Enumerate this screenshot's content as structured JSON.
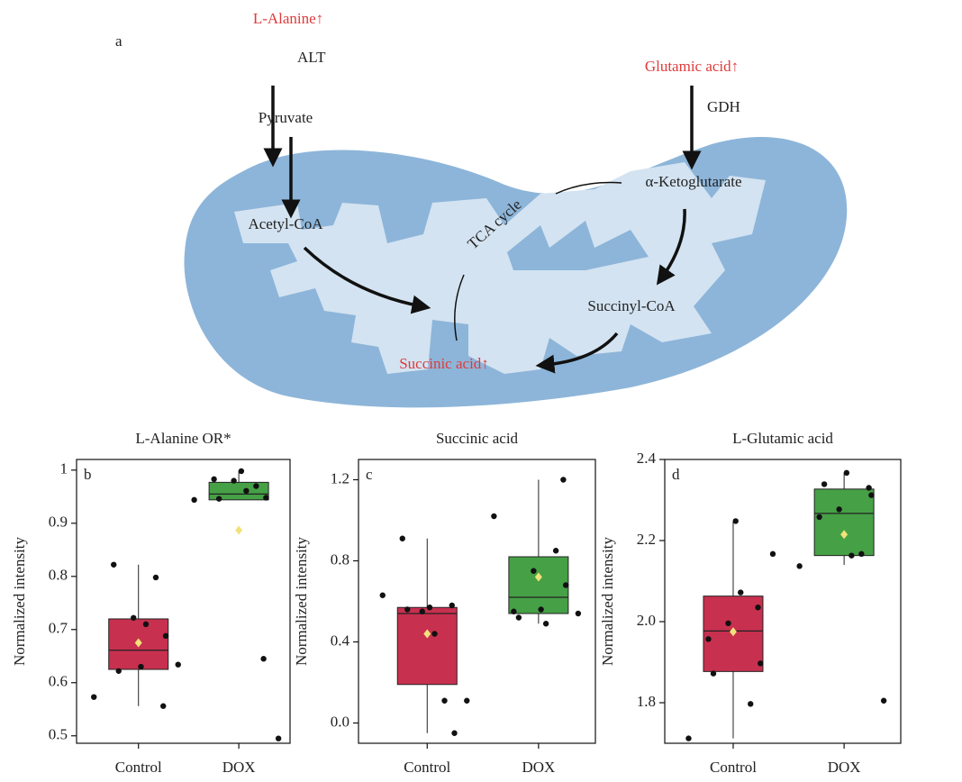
{
  "diagram": {
    "panel_label": "a",
    "alanine": "L-Alanine↑",
    "alt": "ALT",
    "pyruvate": "Pyruvate",
    "acetyl_coa": "Acetyl-CoA",
    "tca_cycle": "TCA cycle",
    "succinic_acid": "Succinic acid↑",
    "glutamic_acid": "Glutamic acid↑",
    "gdh": "GDH",
    "ketoglutarate": "α-Ketoglutarate",
    "succinyl_coa": "Succinyl-CoA"
  },
  "chart_data": [
    {
      "type": "box",
      "panel_label": "b",
      "title": "L-Alanine OR*",
      "ylabel": "Normalized intensity",
      "categories": [
        "Control",
        "DOX"
      ],
      "ylim": [
        0.486,
        1.02
      ],
      "yticks": [
        0.5,
        0.6,
        0.7,
        0.8,
        0.9,
        1.0
      ],
      "boxes": [
        {
          "color": "#c8304f",
          "whisker": [
            0.556,
            0.822
          ],
          "q1": 0.625,
          "median": 0.661,
          "q3": 0.72,
          "mean": 0.675,
          "points": [
            0.573,
            0.822,
            0.622,
            0.722,
            0.63,
            0.71,
            0.798,
            0.688,
            0.556,
            0.634
          ]
        },
        {
          "color": "#46a046",
          "whisker": [
            0.944,
            0.998
          ],
          "q1": 0.944,
          "median": 0.955,
          "q3": 0.977,
          "mean": 0.887,
          "points": [
            0.944,
            0.983,
            0.946,
            0.98,
            0.998,
            0.961,
            0.97,
            0.948,
            0.645,
            0.495
          ]
        }
      ]
    },
    {
      "type": "box",
      "panel_label": "c",
      "title": "Succinic acid",
      "ylabel": "Normalized intensity",
      "categories": [
        "Control",
        "DOX"
      ],
      "ylim": [
        -0.1,
        1.3
      ],
      "yticks": [
        {
          "value": 0,
          "label": "0.0"
        },
        0.4,
        0.8,
        1.2
      ],
      "boxes": [
        {
          "color": "#c8304f",
          "whisker": [
            -0.05,
            0.91
          ],
          "q1": 0.19,
          "median": 0.54,
          "q3": 0.57,
          "mean": 0.44,
          "points": [
            0.63,
            0.91,
            0.56,
            0.55,
            0.57,
            0.44,
            0.11,
            -0.05,
            0.58,
            0.11
          ]
        },
        {
          "color": "#46a046",
          "whisker": [
            0.49,
            1.2
          ],
          "q1": 0.54,
          "median": 0.62,
          "q3": 0.82,
          "mean": 0.72,
          "points": [
            1.02,
            0.55,
            0.52,
            0.75,
            0.56,
            0.49,
            0.85,
            0.68,
            1.2,
            0.54
          ]
        }
      ]
    },
    {
      "type": "box",
      "panel_label": "d",
      "title": "L-Glutamic acid",
      "ylabel": "Normalized intensity",
      "categories": [
        "Control",
        "DOX"
      ],
      "ylim": [
        1.7,
        2.4
      ],
      "yticks": [
        1.8,
        {
          "value": 2,
          "label": "2.0"
        },
        2.2,
        2.4
      ],
      "boxes": [
        {
          "color": "#c8304f",
          "whisker": [
            1.712,
            2.248
          ],
          "q1": 1.877,
          "median": 1.977,
          "q3": 2.063,
          "mean": 1.975,
          "points": [
            1.712,
            1.957,
            1.872,
            1.996,
            2.248,
            2.072,
            1.797,
            1.897,
            2.035,
            2.167
          ]
        },
        {
          "color": "#46a046",
          "whisker": [
            2.14,
            2.367
          ],
          "q1": 2.163,
          "median": 2.267,
          "q3": 2.327,
          "mean": 2.215,
          "points": [
            2.137,
            2.258,
            2.339,
            2.277,
            2.367,
            2.163,
            2.167,
            2.312,
            2.33,
            1.805
          ]
        }
      ]
    }
  ]
}
